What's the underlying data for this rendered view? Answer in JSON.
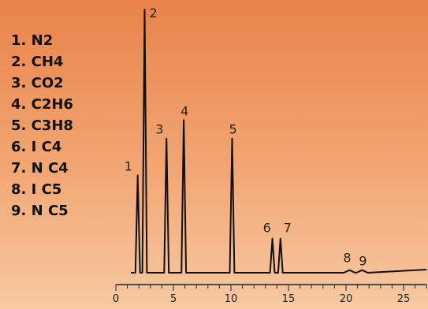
{
  "chart_data": {
    "type": "line",
    "title": "",
    "xlabel": "",
    "ylabel": "",
    "xlim": [
      0,
      27
    ],
    "ylim": [
      0,
      100
    ],
    "x_ticks": [
      0,
      5,
      10,
      15,
      20,
      25
    ],
    "legend": {
      "placement": "top-left",
      "entries": [
        "1. N2",
        "2. CH4",
        "3. CO2",
        "4. C2H6",
        "5. C3H8",
        "6. I C4",
        "7. N C4",
        "8. I C5",
        "9. N C5"
      ]
    },
    "peaks": [
      {
        "label": "1",
        "compound": "N2",
        "x": 1.9,
        "height": 37
      },
      {
        "label": "2",
        "compound": "CH4",
        "x": 2.5,
        "height": 100
      },
      {
        "label": "3",
        "compound": "CO2",
        "x": 4.4,
        "height": 51
      },
      {
        "label": "4",
        "compound": "C2H6",
        "x": 5.9,
        "height": 58
      },
      {
        "label": "5",
        "compound": "C3H8",
        "x": 10.1,
        "height": 51
      },
      {
        "label": "6",
        "compound": "I C4",
        "x": 13.6,
        "height": 13
      },
      {
        "label": "7",
        "compound": "N C4",
        "x": 14.3,
        "height": 13
      },
      {
        "label": "8",
        "compound": "I C5",
        "x": 20.3,
        "height": 1
      },
      {
        "label": "9",
        "compound": "N C5",
        "x": 21.4,
        "height": 1
      }
    ],
    "colors": {
      "trace": "#111111",
      "axis": "#222222"
    }
  }
}
